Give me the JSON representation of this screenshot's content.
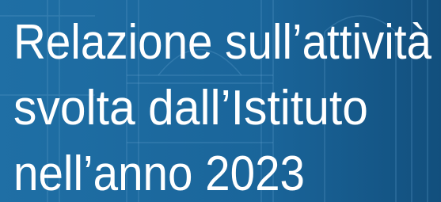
{
  "title": {
    "lines": [
      "Relazione sull’attività",
      "svolta dall’Istituto",
      "nell’anno 2023"
    ]
  }
}
